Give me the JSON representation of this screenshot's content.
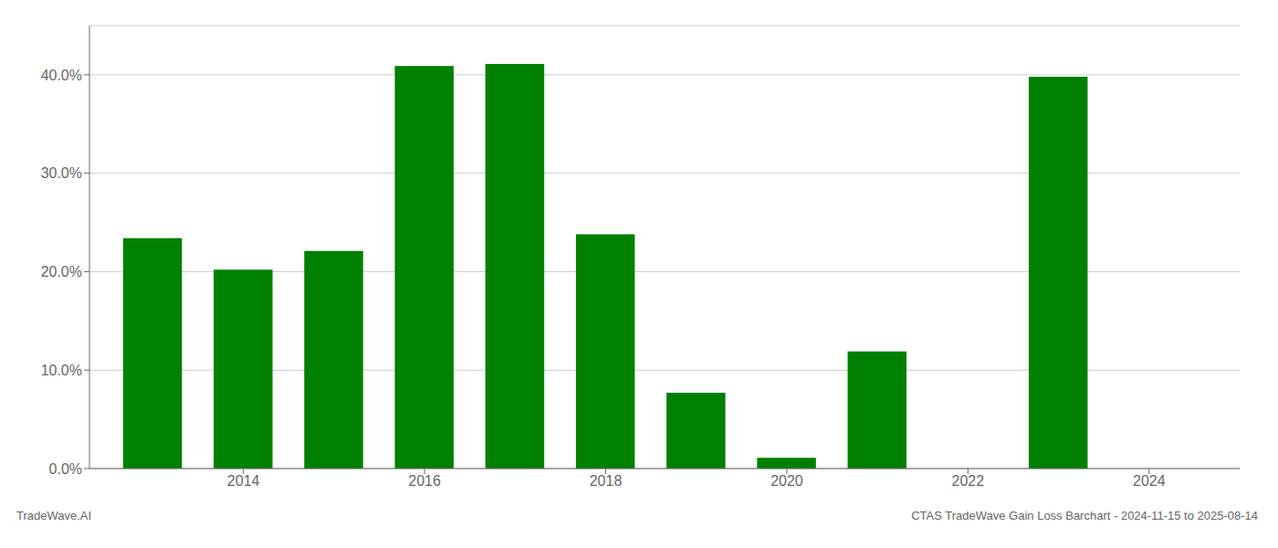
{
  "chart_data": {
    "type": "bar",
    "x": [
      2013,
      2014,
      2015,
      2016,
      2017,
      2018,
      2019,
      2020,
      2021,
      2022,
      2023,
      2024
    ],
    "values": [
      0.234,
      0.202,
      0.221,
      0.409,
      0.411,
      0.238,
      0.077,
      0.011,
      0.119,
      0.0,
      0.398,
      0.0
    ],
    "color": "#008000",
    "xlim": [
      2012.3,
      2025.0
    ],
    "xticks": [
      2014,
      2016,
      2018,
      2020,
      2022,
      2024
    ],
    "ylim": [
      0,
      0.45
    ],
    "yticks": [
      {
        "value": 0.0,
        "label": "0.0%"
      },
      {
        "value": 0.1,
        "label": "10.0%"
      },
      {
        "value": 0.2,
        "label": "20.0%"
      },
      {
        "value": 0.3,
        "label": "30.0%"
      },
      {
        "value": 0.4,
        "label": "40.0%"
      }
    ],
    "grid": true,
    "annotations": [
      "TradeWave.AI",
      "CTAS TradeWave Gain Loss Barchart - 2024-11-15 to 2025-08-14"
    ]
  }
}
